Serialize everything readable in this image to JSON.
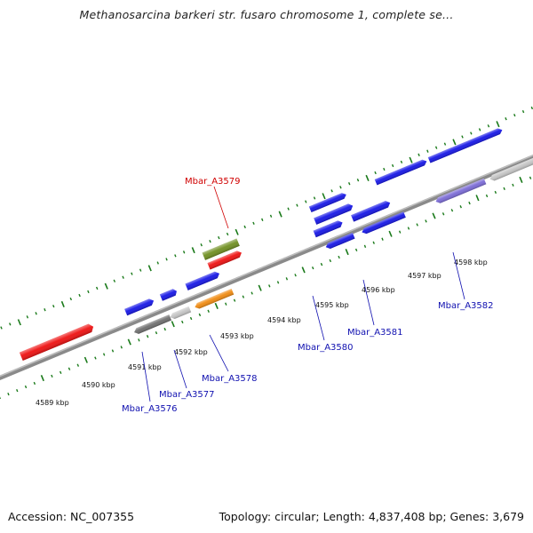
{
  "title": "Methanosarcina barkeri str. fusaro chromosome 1, complete se...",
  "footer": {
    "accession": "Accession: NC_007355",
    "summary": "Topology: circular; Length: 4,837,408 bp; Genes: 3,679"
  },
  "colors": {
    "backbone": "#8a8a8a",
    "ticks": "#1a7a1a",
    "gene_red": "#ee1010",
    "gene_blue": "#1515e6",
    "gene_green": "#6f8f20",
    "gene_gray_dark": "#6e6e6e",
    "gene_gray_light": "#c4c4c4",
    "gene_orange": "#f08a10",
    "gene_purple": "#7a6ad6",
    "label_red": "#d00000",
    "label_blue": "#1010b0"
  },
  "kbp_labels": [
    "4589 kbp",
    "4590 kbp",
    "4591 kbp",
    "4592 kbp",
    "4593 kbp",
    "4594 kbp",
    "4595 kbp",
    "4596 kbp",
    "4597 kbp",
    "4598 kbp"
  ],
  "gene_labels": {
    "a3579": "Mbar_A3579",
    "a3576": "Mbar_A3576",
    "a3577": "Mbar_A3577",
    "a3578": "Mbar_A3578",
    "a3580": "Mbar_A3580",
    "a3581": "Mbar_A3581",
    "a3582": "Mbar_A3582"
  }
}
